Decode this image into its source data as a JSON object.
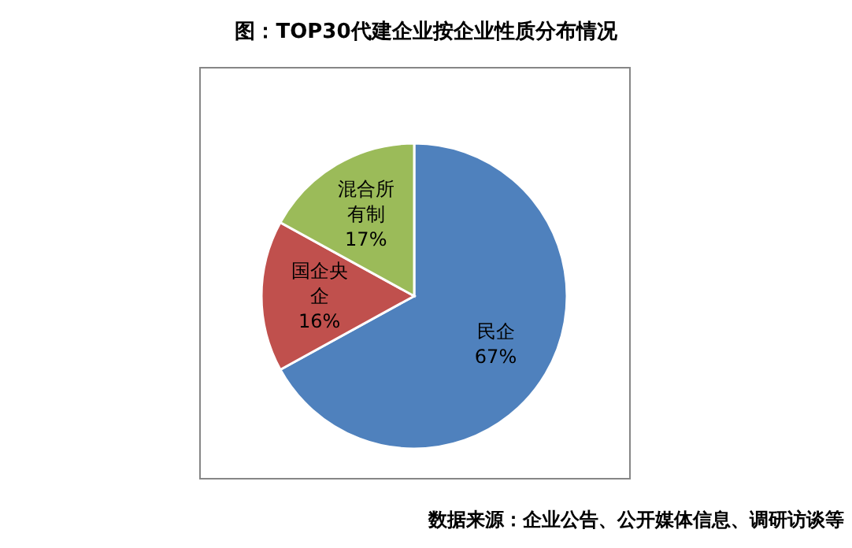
{
  "chart_data": {
    "type": "pie",
    "title": "图：TOP30代建企业按企业性质分布情况",
    "categories": [
      "民企",
      "国企央企",
      "混合所有制"
    ],
    "values": [
      67,
      16,
      17
    ],
    "colors": [
      "#4f81bd",
      "#c0504d",
      "#9bbb59"
    ],
    "value_labels": [
      "67%",
      "16%",
      "17%"
    ],
    "legend": false,
    "annotations": [
      "数据来源：企业公告、公开媒体信息、调研访谈等"
    ]
  }
}
